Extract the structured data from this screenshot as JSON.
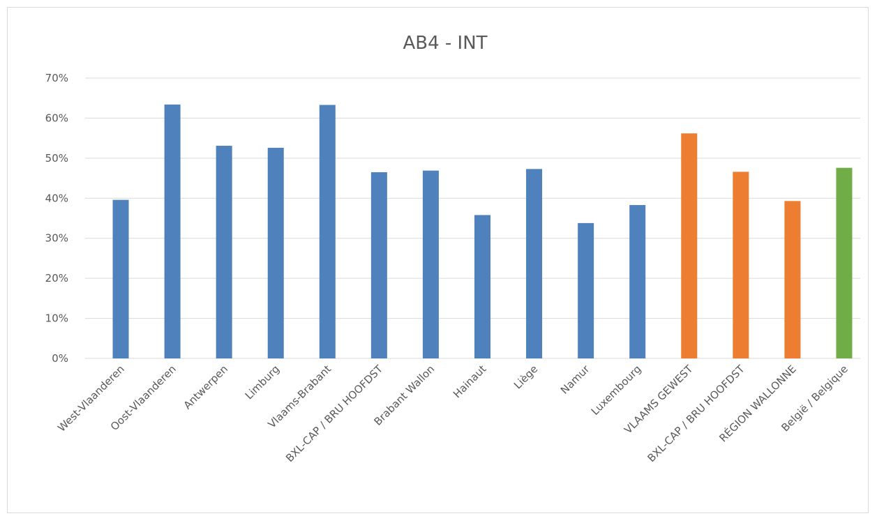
{
  "chart_data": {
    "type": "bar",
    "title": "AB4 - INT",
    "xlabel": "",
    "ylabel": "",
    "ylim": [
      0,
      70
    ],
    "ytick_step": 10,
    "ytick_format": "percent",
    "grid": true,
    "legend": "none",
    "categories": [
      "West-Vlaanderen",
      "Oost-Vlaanderen",
      "Antwerpen",
      "Limburg",
      "Vlaams-Brabant",
      "BXL-CAP / BRU HOOFDST",
      "Brabant Wallon",
      "Hainaut",
      "Liège",
      "Namur",
      "Luxembourg",
      "VLAAMS GEWEST",
      "BXL-CAP / BRU HOOFDST",
      "RÉGION WALLONNE",
      "België / Belgique"
    ],
    "values": [
      39.6,
      63.4,
      53.1,
      52.6,
      63.3,
      46.5,
      46.9,
      35.8,
      47.3,
      33.8,
      38.3,
      56.2,
      46.6,
      39.3,
      47.6
    ],
    "colors": [
      "#4f81bd",
      "#4f81bd",
      "#4f81bd",
      "#4f81bd",
      "#4f81bd",
      "#4f81bd",
      "#4f81bd",
      "#4f81bd",
      "#4f81bd",
      "#4f81bd",
      "#4f81bd",
      "#ed7d31",
      "#ed7d31",
      "#ed7d31",
      "#70ad47"
    ],
    "gridline_color": "#d9d9d9"
  }
}
